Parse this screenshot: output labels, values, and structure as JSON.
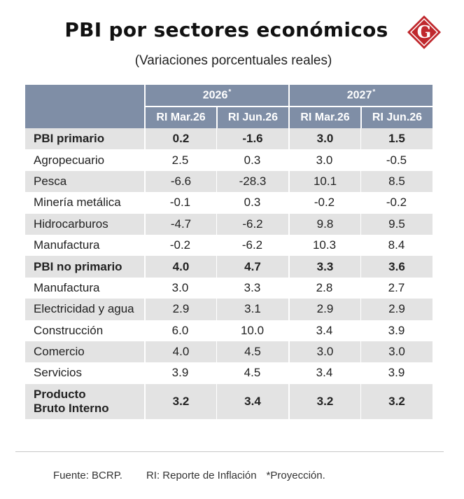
{
  "header": {
    "title": "PBI por sectores económicos",
    "subtitle": "(Variaciones porcentuales reales)",
    "logo_letter": "G"
  },
  "colors": {
    "header_bg": "#7f8ea6",
    "shaded_row": "#e3e3e3",
    "logo_red": "#c0282d"
  },
  "table": {
    "years": [
      {
        "label": "2026",
        "mark": "*"
      },
      {
        "label": "2027",
        "mark": "*"
      }
    ],
    "subheaders": [
      "RI Mar.26",
      "RI Jun.26",
      "RI Mar.26",
      "RI Jun.26"
    ],
    "rows": [
      {
        "label": "PBI primario",
        "values": [
          "0.2",
          "-1.6",
          "3.0",
          "1.5"
        ]
      },
      {
        "label": "Agropecuario",
        "values": [
          "2.5",
          "0.3",
          "3.0",
          "-0.5"
        ]
      },
      {
        "label": "Pesca",
        "values": [
          "-6.6",
          "-28.3",
          "10.1",
          "8.5"
        ]
      },
      {
        "label": "Minería metálica",
        "values": [
          "-0.1",
          "0.3",
          "-0.2",
          "-0.2"
        ]
      },
      {
        "label": "Hidrocarburos",
        "values": [
          "-4.7",
          "-6.2",
          "9.8",
          "9.5"
        ]
      },
      {
        "label": "Manufactura",
        "values": [
          "-0.2",
          "-6.2",
          "10.3",
          "8.4"
        ]
      },
      {
        "label": "PBI no primario",
        "values": [
          "4.0",
          "4.7",
          "3.3",
          "3.6"
        ]
      },
      {
        "label": "Manufactura",
        "values": [
          "3.0",
          "3.3",
          "2.8",
          "2.7"
        ]
      },
      {
        "label": "Electricidad y agua",
        "values": [
          "2.9",
          "3.1",
          "2.9",
          "2.9"
        ]
      },
      {
        "label": "Construcción",
        "values": [
          "6.0",
          "10.0",
          "3.4",
          "3.9"
        ]
      },
      {
        "label": "Comercio",
        "values": [
          "4.0",
          "4.5",
          "3.0",
          "3.0"
        ]
      },
      {
        "label": "Servicios",
        "values": [
          "3.9",
          "4.5",
          "3.4",
          "3.9"
        ]
      }
    ],
    "total": {
      "label_line1": "Producto",
      "label_line2": "Bruto Interno",
      "values": [
        "3.2",
        "3.4",
        "3.2",
        "3.2"
      ]
    }
  },
  "footer": {
    "source": "Fuente: BCRP.",
    "ri_note": "RI: Reporte de Inflación",
    "projection_note": "*Proyección."
  }
}
